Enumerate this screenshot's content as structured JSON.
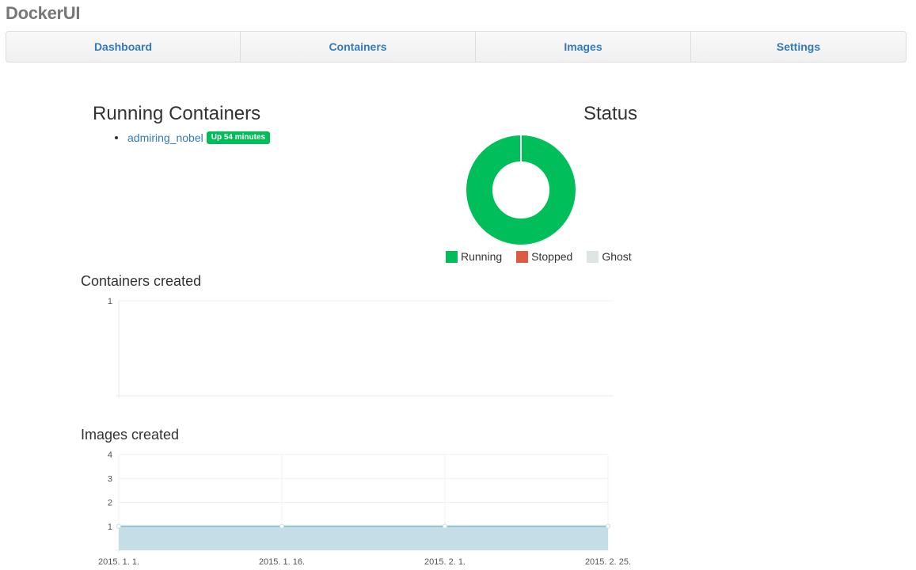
{
  "app": {
    "brand": "DockerUI"
  },
  "nav": {
    "items": [
      {
        "label": "Dashboard"
      },
      {
        "label": "Containers"
      },
      {
        "label": "Images"
      },
      {
        "label": "Settings"
      }
    ]
  },
  "running": {
    "title": "Running Containers",
    "containers": [
      {
        "name": "admiring_nobel",
        "status": "Up 54 minutes"
      }
    ]
  },
  "status": {
    "title": "Status",
    "legend": [
      {
        "label": "Running",
        "color": "#00bf5a",
        "value": 1
      },
      {
        "label": "Stopped",
        "color": "#dd5a43",
        "value": 0
      },
      {
        "label": "Ghost",
        "color": "#dde6e4",
        "value": 0
      }
    ]
  },
  "charts": {
    "containers_created": {
      "title": "Containers created"
    },
    "images_created": {
      "title": "Images created"
    }
  },
  "chart_data": [
    {
      "type": "pie",
      "title": "Status",
      "categories": [
        "Running",
        "Stopped",
        "Ghost"
      ],
      "values": [
        1,
        0,
        0
      ]
    },
    {
      "type": "line",
      "title": "Containers created",
      "x": [],
      "values": [],
      "ylim": [
        0,
        1
      ],
      "yticks": [
        1
      ],
      "grid": true
    },
    {
      "type": "area",
      "title": "Images created",
      "x": [
        "2015. 1. 1.",
        "2015. 1. 16.",
        "2015. 2. 1.",
        "2015. 2. 25."
      ],
      "values": [
        1,
        1,
        1,
        1
      ],
      "ylim": [
        0,
        4
      ],
      "yticks": [
        1,
        2,
        3,
        4
      ],
      "grid": true
    }
  ]
}
